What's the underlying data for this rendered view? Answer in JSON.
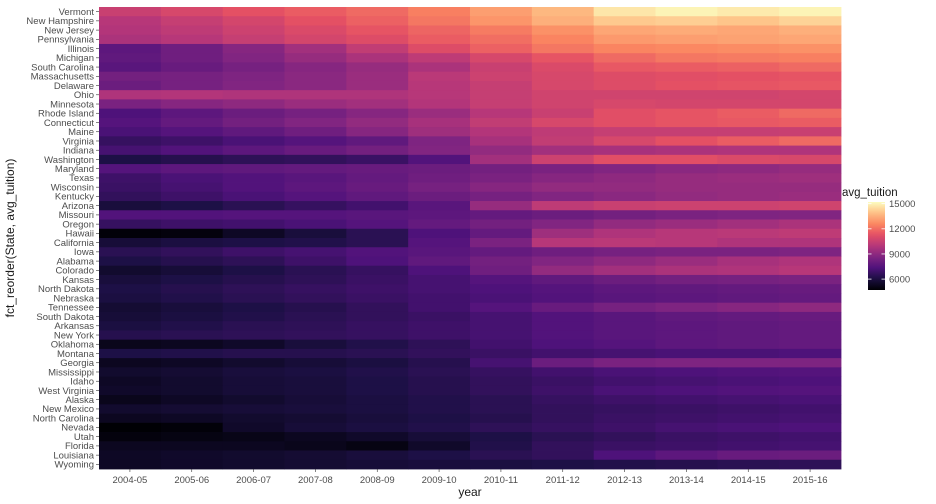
{
  "chart_data": {
    "type": "heatmap",
    "xlabel": "year",
    "ylabel": "fct_reorder(State, avg_tuition)",
    "x": [
      "2004-05",
      "2005-06",
      "2006-07",
      "2007-08",
      "2008-09",
      "2009-10",
      "2010-11",
      "2011-12",
      "2012-13",
      "2013-14",
      "2014-15",
      "2015-16"
    ],
    "y": [
      "Vermont",
      "New Hampshire",
      "New Jersey",
      "Pennsylvania",
      "Illinois",
      "Michigan",
      "South Carolina",
      "Massachusetts",
      "Delaware",
      "Ohio",
      "Minnesota",
      "Rhode Island",
      "Connecticut",
      "Maine",
      "Virginia",
      "Indiana",
      "Washington",
      "Maryland",
      "Texas",
      "Wisconsin",
      "Kentucky",
      "Arizona",
      "Missouri",
      "Oregon",
      "Hawaii",
      "California",
      "Iowa",
      "Alabama",
      "Colorado",
      "Kansas",
      "North Dakota",
      "Nebraska",
      "Tennessee",
      "South Dakota",
      "Arkansas",
      "New York",
      "Oklahoma",
      "Montana",
      "Georgia",
      "Mississippi",
      "Idaho",
      "West Virginia",
      "Alaska",
      "New Mexico",
      "North Carolina",
      "Nevada",
      "Utah",
      "Florida",
      "Louisiana",
      "Wyoming"
    ],
    "values": [
      [
        10500,
        10900,
        11300,
        11600,
        11900,
        12400,
        13100,
        13700,
        14700,
        15000,
        14800,
        15000
      ],
      [
        10000,
        10400,
        10800,
        11300,
        11700,
        12200,
        12900,
        13500,
        14100,
        14200,
        14000,
        14300
      ],
      [
        9900,
        10200,
        10600,
        11000,
        11400,
        11800,
        12300,
        12800,
        13300,
        13400,
        13300,
        13500
      ],
      [
        9700,
        10000,
        10400,
        10800,
        11100,
        11600,
        12000,
        12500,
        13000,
        13100,
        13200,
        13300
      ],
      [
        7700,
        8200,
        8800,
        9500,
        10300,
        11100,
        11700,
        12200,
        12500,
        12600,
        12700,
        12800
      ],
      [
        7800,
        8200,
        8700,
        9200,
        9700,
        10200,
        10900,
        11400,
        11900,
        12200,
        12300,
        12400
      ],
      [
        7600,
        8000,
        8400,
        8800,
        9200,
        9700,
        10500,
        11000,
        11500,
        11600,
        11700,
        11900
      ],
      [
        8300,
        8400,
        8600,
        8900,
        9300,
        10100,
        10600,
        10900,
        11100,
        11200,
        11300,
        11400
      ],
      [
        8100,
        8400,
        8700,
        8900,
        9300,
        10000,
        10400,
        10900,
        11100,
        11300,
        11400,
        11500
      ],
      [
        9800,
        9900,
        9800,
        9800,
        9800,
        10000,
        10400,
        10700,
        10700,
        10700,
        10700,
        10800
      ],
      [
        8500,
        8800,
        9000,
        9300,
        9500,
        9900,
        10400,
        10700,
        10900,
        10800,
        10800,
        10800
      ],
      [
        7300,
        7700,
        8100,
        8400,
        8800,
        9300,
        10000,
        10500,
        11200,
        11400,
        11600,
        11900
      ],
      [
        7500,
        7900,
        8300,
        8700,
        9100,
        9600,
        10300,
        10900,
        11200,
        11400,
        11500,
        11600
      ],
      [
        7200,
        7500,
        7800,
        8200,
        8800,
        9400,
        9900,
        10200,
        10400,
        10400,
        10400,
        10500
      ],
      [
        6700,
        6900,
        7200,
        7500,
        7800,
        8600,
        9600,
        10300,
        10900,
        11300,
        11600,
        11900
      ],
      [
        7100,
        7400,
        7700,
        8000,
        8300,
        8700,
        9100,
        9500,
        9600,
        9700,
        9800,
        9800
      ],
      [
        6100,
        6300,
        6500,
        6600,
        6800,
        7400,
        9500,
        10600,
        11200,
        11200,
        11000,
        10900
      ],
      [
        7500,
        7700,
        7800,
        7900,
        8000,
        8100,
        8300,
        8500,
        8700,
        8900,
        9000,
        9200
      ],
      [
        6900,
        7200,
        7400,
        7600,
        7900,
        8200,
        8500,
        8800,
        9000,
        9200,
        9300,
        9400
      ],
      [
        6800,
        7100,
        7400,
        7700,
        8000,
        8400,
        8800,
        9100,
        9100,
        9200,
        9200,
        9200
      ],
      [
        6600,
        6900,
        7200,
        7500,
        7800,
        8100,
        8400,
        8700,
        8900,
        9100,
        9200,
        9300
      ],
      [
        5900,
        6100,
        6400,
        6700,
        7000,
        7600,
        9200,
        10200,
        10500,
        10600,
        10600,
        10700
      ],
      [
        7400,
        7400,
        7500,
        7500,
        7600,
        7700,
        7900,
        8100,
        8300,
        8500,
        8600,
        8700
      ],
      [
        6700,
        6900,
        7000,
        7200,
        7500,
        7900,
        8300,
        8700,
        9100,
        9300,
        9500,
        9700
      ],
      [
        4800,
        4900,
        5400,
        5900,
        6400,
        7300,
        7900,
        9400,
        9800,
        10000,
        10100,
        10200
      ],
      [
        5800,
        6000,
        6100,
        6200,
        6400,
        7500,
        8500,
        10000,
        10100,
        10000,
        9800,
        9800
      ],
      [
        6400,
        6600,
        6900,
        7100,
        7400,
        7600,
        7900,
        8200,
        8400,
        8500,
        8500,
        8600
      ],
      [
        6100,
        6300,
        6500,
        6900,
        7300,
        7800,
        8300,
        8700,
        9000,
        9300,
        9600,
        9800
      ],
      [
        5600,
        5800,
        6100,
        6400,
        6700,
        7300,
        8200,
        9100,
        9500,
        9700,
        9800,
        10000
      ],
      [
        5900,
        6100,
        6300,
        6500,
        6800,
        7100,
        7500,
        7800,
        8100,
        8300,
        8400,
        8500
      ],
      [
        6100,
        6300,
        6500,
        6700,
        6900,
        7100,
        7300,
        7500,
        7700,
        7800,
        7900,
        8000
      ],
      [
        6000,
        6200,
        6400,
        6600,
        6800,
        7000,
        7200,
        7400,
        7600,
        7700,
        7800,
        7900
      ],
      [
        5700,
        5900,
        6100,
        6300,
        6600,
        7000,
        7500,
        8000,
        8400,
        8600,
        8800,
        9000
      ],
      [
        5800,
        6000,
        6200,
        6400,
        6600,
        6800,
        7100,
        7400,
        7600,
        7800,
        7900,
        8000
      ],
      [
        6000,
        6200,
        6400,
        6500,
        6700,
        6900,
        7100,
        7400,
        7600,
        7700,
        7800,
        7900
      ],
      [
        6300,
        6400,
        6500,
        6600,
        6700,
        6900,
        7100,
        7400,
        7600,
        7700,
        7800,
        7900
      ],
      [
        5200,
        5300,
        5500,
        5900,
        6200,
        6500,
        7000,
        7300,
        7500,
        7700,
        7800,
        7900
      ],
      [
        6100,
        6200,
        6300,
        6300,
        6400,
        6600,
        6800,
        7000,
        7100,
        7200,
        7200,
        7300
      ],
      [
        5300,
        5400,
        5600,
        5800,
        6000,
        6300,
        7100,
        8100,
        8500,
        8600,
        8600,
        8600
      ],
      [
        5600,
        5700,
        5900,
        6000,
        6200,
        6400,
        6700,
        7000,
        7200,
        7300,
        7400,
        7500
      ],
      [
        5400,
        5600,
        5800,
        5900,
        6100,
        6300,
        6600,
        6800,
        7000,
        7100,
        7200,
        7300
      ],
      [
        5500,
        5600,
        5800,
        5900,
        6100,
        6300,
        6600,
        6900,
        7200,
        7300,
        7400,
        7500
      ],
      [
        5200,
        5400,
        5600,
        5800,
        6000,
        6200,
        6400,
        6700,
        6900,
        7000,
        7100,
        7200
      ],
      [
        5600,
        5700,
        5800,
        5900,
        6000,
        6200,
        6400,
        6600,
        6700,
        6800,
        6900,
        7000
      ],
      [
        5300,
        5400,
        5600,
        5700,
        5900,
        6100,
        6300,
        6600,
        6800,
        6900,
        7000,
        7100
      ],
      [
        4700,
        4800,
        5500,
        5800,
        6000,
        6200,
        6500,
        6700,
        6900,
        7100,
        7200,
        7300
      ],
      [
        4900,
        5000,
        5100,
        5300,
        5500,
        5800,
        6100,
        6400,
        6600,
        6800,
        6900,
        7000
      ],
      [
        5300,
        5300,
        5300,
        5200,
        5000,
        5500,
        6200,
        6600,
        6800,
        6900,
        7000,
        7100
      ],
      [
        5400,
        5500,
        5600,
        5700,
        5900,
        6100,
        6400,
        6600,
        7300,
        7700,
        8000,
        8100
      ],
      [
        5400,
        5500,
        5600,
        5700,
        5800,
        5900,
        6000,
        6100,
        6200,
        6300,
        6400,
        6500
      ]
    ],
    "legend": {
      "title": "avg_tuition",
      "ticks": [
        6000,
        9000,
        12000,
        15000
      ],
      "range": [
        4700,
        15200
      ],
      "placement": "right"
    },
    "grid": true
  }
}
